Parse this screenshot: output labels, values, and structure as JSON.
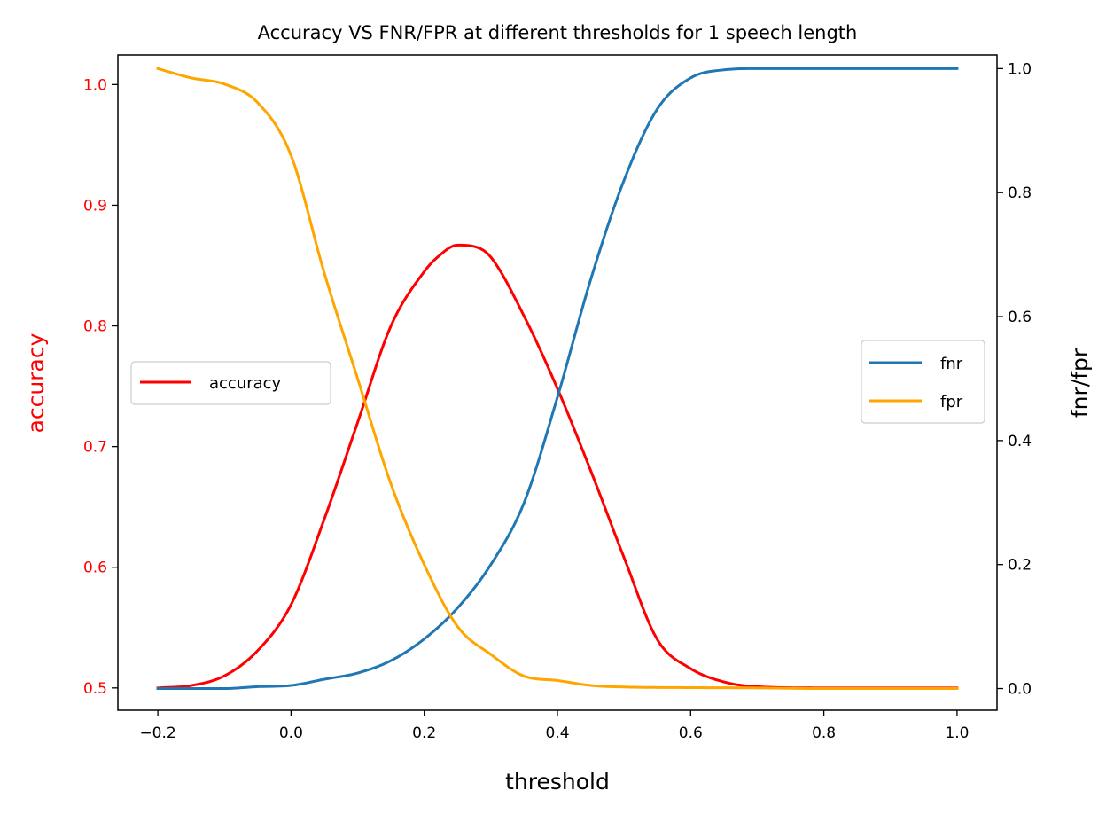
{
  "chart_data": {
    "type": "line",
    "title": "Accuracy VS FNR/FPR at different thresholds for 1 speech length",
    "xlabel": "threshold",
    "ylabel_left": "accuracy",
    "ylabel_right": "fnr/fpr",
    "xlim": [
      -0.26,
      1.06
    ],
    "ylim_left": [
      0.4815,
      1.0245
    ],
    "ylim_right": [
      -0.035,
      1.022
    ],
    "xticks": [
      -0.2,
      0.0,
      0.2,
      0.4,
      0.6,
      0.8,
      1.0
    ],
    "yticks_left": [
      0.5,
      0.6,
      0.7,
      0.8,
      0.9,
      1.0
    ],
    "yticks_right": [
      0.0,
      0.2,
      0.4,
      0.6,
      0.8,
      1.0
    ],
    "grid": false,
    "legend_left": "center-left",
    "legend_right": "center-right",
    "left_axis_color": "#ff0000",
    "series": [
      {
        "name": "accuracy",
        "axis": "left",
        "color": "#ff0000",
        "x": [
          -0.2,
          -0.15,
          -0.1,
          -0.05,
          0.0,
          0.05,
          0.1,
          0.15,
          0.2,
          0.22,
          0.25,
          0.28,
          0.3,
          0.35,
          0.4,
          0.45,
          0.5,
          0.55,
          0.6,
          0.65,
          0.7,
          0.8,
          1.0
        ],
        "y": [
          0.5,
          0.502,
          0.51,
          0.531,
          0.569,
          0.64,
          0.72,
          0.8,
          0.845,
          0.857,
          0.867,
          0.865,
          0.857,
          0.808,
          0.748,
          0.68,
          0.608,
          0.54,
          0.516,
          0.505,
          0.501,
          0.5,
          0.5
        ]
      },
      {
        "name": "fnr",
        "axis": "right",
        "color": "#1f77b4",
        "x": [
          -0.2,
          -0.1,
          -0.05,
          0.0,
          0.05,
          0.1,
          0.15,
          0.2,
          0.25,
          0.3,
          0.35,
          0.4,
          0.45,
          0.5,
          0.55,
          0.6,
          0.65,
          0.7,
          0.8,
          1.0
        ],
        "y": [
          0.0,
          0.0,
          0.003,
          0.005,
          0.015,
          0.025,
          0.045,
          0.08,
          0.13,
          0.2,
          0.3,
          0.47,
          0.66,
          0.82,
          0.935,
          0.985,
          0.998,
          1.0,
          1.0,
          1.0
        ]
      },
      {
        "name": "fpr",
        "axis": "right",
        "color": "#ffa500",
        "x": [
          -0.2,
          -0.15,
          -0.1,
          -0.05,
          0.0,
          0.05,
          0.1,
          0.15,
          0.2,
          0.25,
          0.3,
          0.35,
          0.4,
          0.45,
          0.5,
          0.6,
          0.7,
          0.8,
          1.0
        ],
        "y": [
          1.0,
          0.985,
          0.975,
          0.945,
          0.86,
          0.67,
          0.5,
          0.33,
          0.2,
          0.1,
          0.055,
          0.02,
          0.013,
          0.005,
          0.0025,
          0.0015,
          0.001,
          0.0,
          0.0
        ]
      }
    ]
  }
}
